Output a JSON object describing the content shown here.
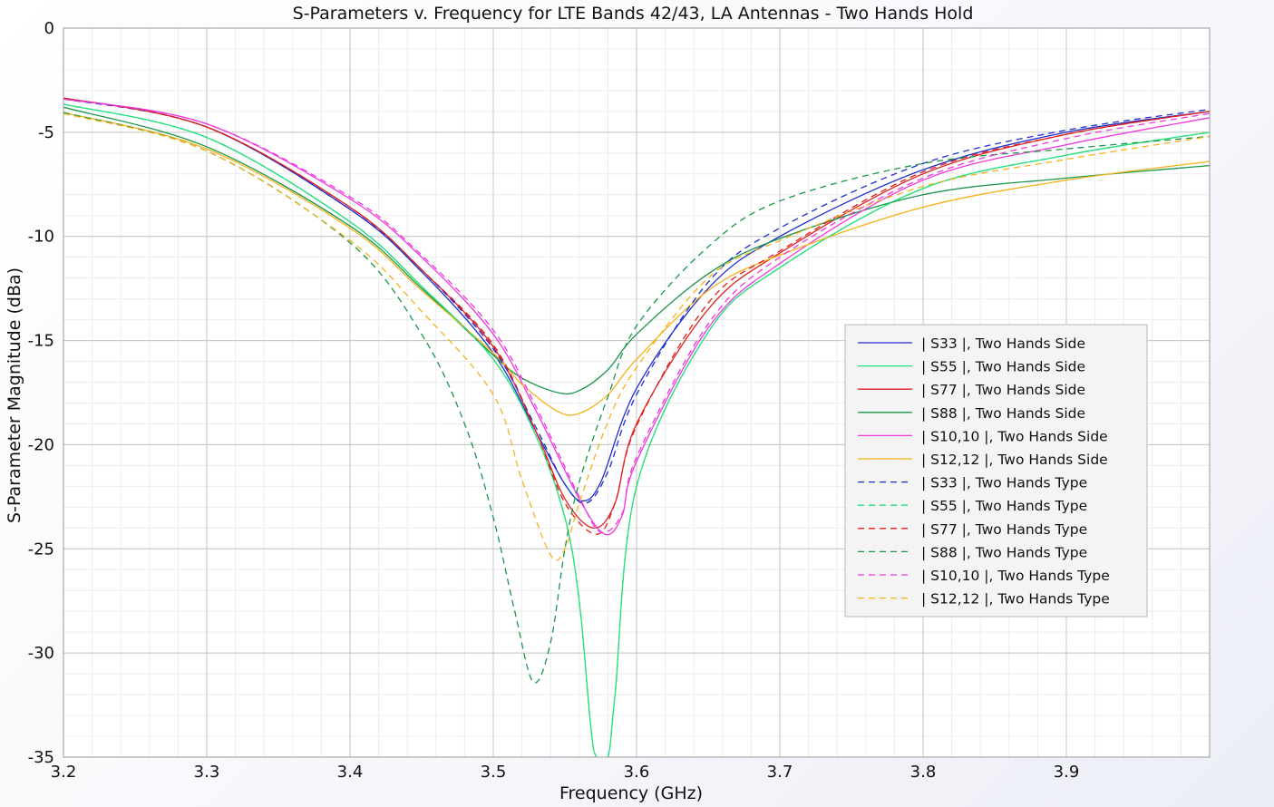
{
  "chart_data": {
    "type": "line",
    "title": "S-Parameters v. Frequency for LTE Bands 42/43, LA Antennas - Two Hands Hold",
    "xlabel": "Frequency (GHz)",
    "ylabel": "S-Parameter Magnitude (dBa)",
    "xlim": [
      3.2,
      4.0
    ],
    "ylim": [
      -35,
      0
    ],
    "xticks": [
      "3.2",
      "3.3",
      "3.4",
      "3.5",
      "3.6",
      "3.7",
      "3.8",
      "3.9"
    ],
    "yticks": [
      "0",
      "-5",
      "-10",
      "-15",
      "-20",
      "-25",
      "-30",
      "-35"
    ],
    "grid": true,
    "legend_position": "right",
    "series": [
      {
        "name": "| S33 |, Two Hands Side",
        "color": "#1f2fd0",
        "dash": "solid",
        "points": [
          [
            3.2,
            -3.35
          ],
          [
            3.3,
            -4.75
          ],
          [
            3.4,
            -8.7
          ],
          [
            3.45,
            -11.7
          ],
          [
            3.5,
            -15.6
          ],
          [
            3.53,
            -19.4
          ],
          [
            3.55,
            -21.9
          ],
          [
            3.562,
            -22.7
          ],
          [
            3.575,
            -21.8
          ],
          [
            3.6,
            -17.3
          ],
          [
            3.65,
            -12.5
          ],
          [
            3.7,
            -10.0
          ],
          [
            3.8,
            -6.8
          ],
          [
            3.9,
            -5.0
          ],
          [
            4.0,
            -4.0
          ]
        ]
      },
      {
        "name": "| S55 |, Two Hands Side",
        "color": "#22e07a",
        "dash": "solid",
        "points": [
          [
            3.2,
            -3.65
          ],
          [
            3.3,
            -5.25
          ],
          [
            3.4,
            -9.3
          ],
          [
            3.45,
            -12.4
          ],
          [
            3.5,
            -15.9
          ],
          [
            3.53,
            -19.6
          ],
          [
            3.55,
            -23.5
          ],
          [
            3.56,
            -27.5
          ],
          [
            3.568,
            -33.5
          ],
          [
            3.572,
            -35
          ],
          [
            3.58,
            -35
          ],
          [
            3.585,
            -32.0
          ],
          [
            3.6,
            -22.0
          ],
          [
            3.65,
            -14.6
          ],
          [
            3.7,
            -11.5
          ],
          [
            3.8,
            -7.7
          ],
          [
            3.9,
            -6.1
          ],
          [
            4.0,
            -5.0
          ]
        ]
      },
      {
        "name": "| S77 |, Two Hands Side",
        "color": "#e02020",
        "dash": "solid",
        "points": [
          [
            3.2,
            -3.35
          ],
          [
            3.3,
            -4.75
          ],
          [
            3.4,
            -8.6
          ],
          [
            3.45,
            -11.6
          ],
          [
            3.5,
            -15.3
          ],
          [
            3.53,
            -19.4
          ],
          [
            3.55,
            -22.6
          ],
          [
            3.57,
            -24.0
          ],
          [
            3.585,
            -22.8
          ],
          [
            3.6,
            -19.0
          ],
          [
            3.65,
            -13.5
          ],
          [
            3.7,
            -10.8
          ],
          [
            3.8,
            -7.0
          ],
          [
            3.9,
            -5.1
          ],
          [
            4.0,
            -4.0
          ]
        ]
      },
      {
        "name": "| S88 |, Two Hands Side",
        "color": "#1a9648",
        "dash": "solid",
        "points": [
          [
            3.2,
            -3.8
          ],
          [
            3.3,
            -5.7
          ],
          [
            3.4,
            -9.5
          ],
          [
            3.45,
            -12.5
          ],
          [
            3.5,
            -15.7
          ],
          [
            3.52,
            -16.8
          ],
          [
            3.545,
            -17.5
          ],
          [
            3.56,
            -17.4
          ],
          [
            3.58,
            -16.4
          ],
          [
            3.6,
            -14.7
          ],
          [
            3.65,
            -11.8
          ],
          [
            3.7,
            -10.1
          ],
          [
            3.8,
            -8.0
          ],
          [
            3.9,
            -7.2
          ],
          [
            4.0,
            -6.6
          ]
        ]
      },
      {
        "name": "| S10,10 |, Two Hands Side",
        "color": "#f038e0",
        "dash": "solid",
        "points": [
          [
            3.2,
            -3.4
          ],
          [
            3.3,
            -4.6
          ],
          [
            3.4,
            -8.2
          ],
          [
            3.45,
            -11.0
          ],
          [
            3.5,
            -14.7
          ],
          [
            3.53,
            -18.4
          ],
          [
            3.56,
            -22.6
          ],
          [
            3.578,
            -24.3
          ],
          [
            3.59,
            -23.4
          ],
          [
            3.6,
            -20.8
          ],
          [
            3.65,
            -14.4
          ],
          [
            3.7,
            -11.3
          ],
          [
            3.8,
            -7.3
          ],
          [
            3.9,
            -5.6
          ],
          [
            4.0,
            -4.3
          ]
        ]
      },
      {
        "name": "| S12,12 |, Two Hands Side",
        "color": "#f5b21a",
        "dash": "solid",
        "points": [
          [
            3.2,
            -4.05
          ],
          [
            3.3,
            -5.8
          ],
          [
            3.4,
            -9.6
          ],
          [
            3.45,
            -12.6
          ],
          [
            3.5,
            -15.6
          ],
          [
            3.52,
            -17.1
          ],
          [
            3.545,
            -18.4
          ],
          [
            3.56,
            -18.5
          ],
          [
            3.58,
            -17.6
          ],
          [
            3.6,
            -15.9
          ],
          [
            3.65,
            -12.6
          ],
          [
            3.7,
            -10.9
          ],
          [
            3.8,
            -8.6
          ],
          [
            3.9,
            -7.3
          ],
          [
            4.0,
            -6.4
          ]
        ]
      },
      {
        "name": "| S33 |, Two Hands Type",
        "color": "#1f2fd0",
        "dash": "dashed",
        "points": [
          [
            3.2,
            -3.4
          ],
          [
            3.3,
            -4.75
          ],
          [
            3.4,
            -8.7
          ],
          [
            3.45,
            -11.6
          ],
          [
            3.5,
            -15.4
          ],
          [
            3.53,
            -19.2
          ],
          [
            3.55,
            -21.9
          ],
          [
            3.565,
            -22.8
          ],
          [
            3.58,
            -21.3
          ],
          [
            3.6,
            -17.6
          ],
          [
            3.65,
            -12.2
          ],
          [
            3.7,
            -9.6
          ],
          [
            3.8,
            -6.5
          ],
          [
            3.9,
            -4.9
          ],
          [
            4.0,
            -3.9
          ]
        ]
      },
      {
        "name": "| S55 |, Two Hands Type",
        "color": "#22e07a",
        "dash": "dashed",
        "points": [
          [
            3.2,
            -3.65
          ],
          [
            3.3,
            -5.25
          ],
          [
            3.4,
            -9.3
          ],
          [
            3.45,
            -12.4
          ],
          [
            3.5,
            -15.9
          ],
          [
            3.53,
            -19.6
          ],
          [
            3.55,
            -23.5
          ],
          [
            3.56,
            -27.5
          ],
          [
            3.568,
            -33.5
          ],
          [
            3.572,
            -35
          ],
          [
            3.58,
            -35
          ],
          [
            3.585,
            -32.0
          ],
          [
            3.6,
            -22.0
          ],
          [
            3.65,
            -14.6
          ],
          [
            3.7,
            -11.5
          ],
          [
            3.8,
            -7.7
          ],
          [
            3.9,
            -6.1
          ],
          [
            4.0,
            -5.0
          ]
        ]
      },
      {
        "name": "| S77 |, Two Hands Type",
        "color": "#e02020",
        "dash": "dashed",
        "points": [
          [
            3.2,
            -3.35
          ],
          [
            3.3,
            -4.75
          ],
          [
            3.4,
            -8.6
          ],
          [
            3.45,
            -11.6
          ],
          [
            3.5,
            -15.2
          ],
          [
            3.53,
            -19.4
          ],
          [
            3.55,
            -22.8
          ],
          [
            3.572,
            -24.3
          ],
          [
            3.585,
            -22.8
          ],
          [
            3.6,
            -19.1
          ],
          [
            3.65,
            -13.2
          ],
          [
            3.7,
            -10.7
          ],
          [
            3.8,
            -6.9
          ],
          [
            3.9,
            -5.1
          ],
          [
            4.0,
            -4.0
          ]
        ]
      },
      {
        "name": "| S88 |, Two Hands Type",
        "color": "#1a9648",
        "dash": "dashed",
        "points": [
          [
            3.2,
            -4.05
          ],
          [
            3.3,
            -5.9
          ],
          [
            3.4,
            -10.3
          ],
          [
            3.45,
            -14.7
          ],
          [
            3.48,
            -19.0
          ],
          [
            3.5,
            -23.5
          ],
          [
            3.515,
            -28.0
          ],
          [
            3.528,
            -31.4
          ],
          [
            3.54,
            -29.5
          ],
          [
            3.55,
            -25.0
          ],
          [
            3.56,
            -21.8
          ],
          [
            3.58,
            -17.7
          ],
          [
            3.6,
            -14.3
          ],
          [
            3.65,
            -10.5
          ],
          [
            3.7,
            -8.3
          ],
          [
            3.8,
            -6.5
          ],
          [
            3.9,
            -5.8
          ],
          [
            4.0,
            -5.2
          ]
        ]
      },
      {
        "name": "| S10,10 |, Two Hands Type",
        "color": "#f038e0",
        "dash": "dashed",
        "points": [
          [
            3.2,
            -3.4
          ],
          [
            3.3,
            -4.6
          ],
          [
            3.4,
            -8.1
          ],
          [
            3.45,
            -10.9
          ],
          [
            3.5,
            -14.5
          ],
          [
            3.53,
            -18.2
          ],
          [
            3.56,
            -22.5
          ],
          [
            3.575,
            -24.2
          ],
          [
            3.59,
            -23.3
          ],
          [
            3.6,
            -20.6
          ],
          [
            3.65,
            -14.2
          ],
          [
            3.7,
            -11.0
          ],
          [
            3.8,
            -7.2
          ],
          [
            3.9,
            -5.3
          ],
          [
            4.0,
            -4.1
          ]
        ]
      },
      {
        "name": "| S12,12 |, Two Hands Type",
        "color": "#f5b21a",
        "dash": "dashed",
        "points": [
          [
            3.2,
            -4.1
          ],
          [
            3.3,
            -5.9
          ],
          [
            3.4,
            -10.2
          ],
          [
            3.45,
            -13.6
          ],
          [
            3.5,
            -17.6
          ],
          [
            3.52,
            -21.7
          ],
          [
            3.54,
            -25.3
          ],
          [
            3.55,
            -25.0
          ],
          [
            3.56,
            -22.8
          ],
          [
            3.58,
            -18.9
          ],
          [
            3.6,
            -16.3
          ],
          [
            3.65,
            -12.0
          ],
          [
            3.7,
            -10.2
          ],
          [
            3.8,
            -7.6
          ],
          [
            3.9,
            -6.3
          ],
          [
            4.0,
            -5.2
          ]
        ]
      }
    ]
  }
}
